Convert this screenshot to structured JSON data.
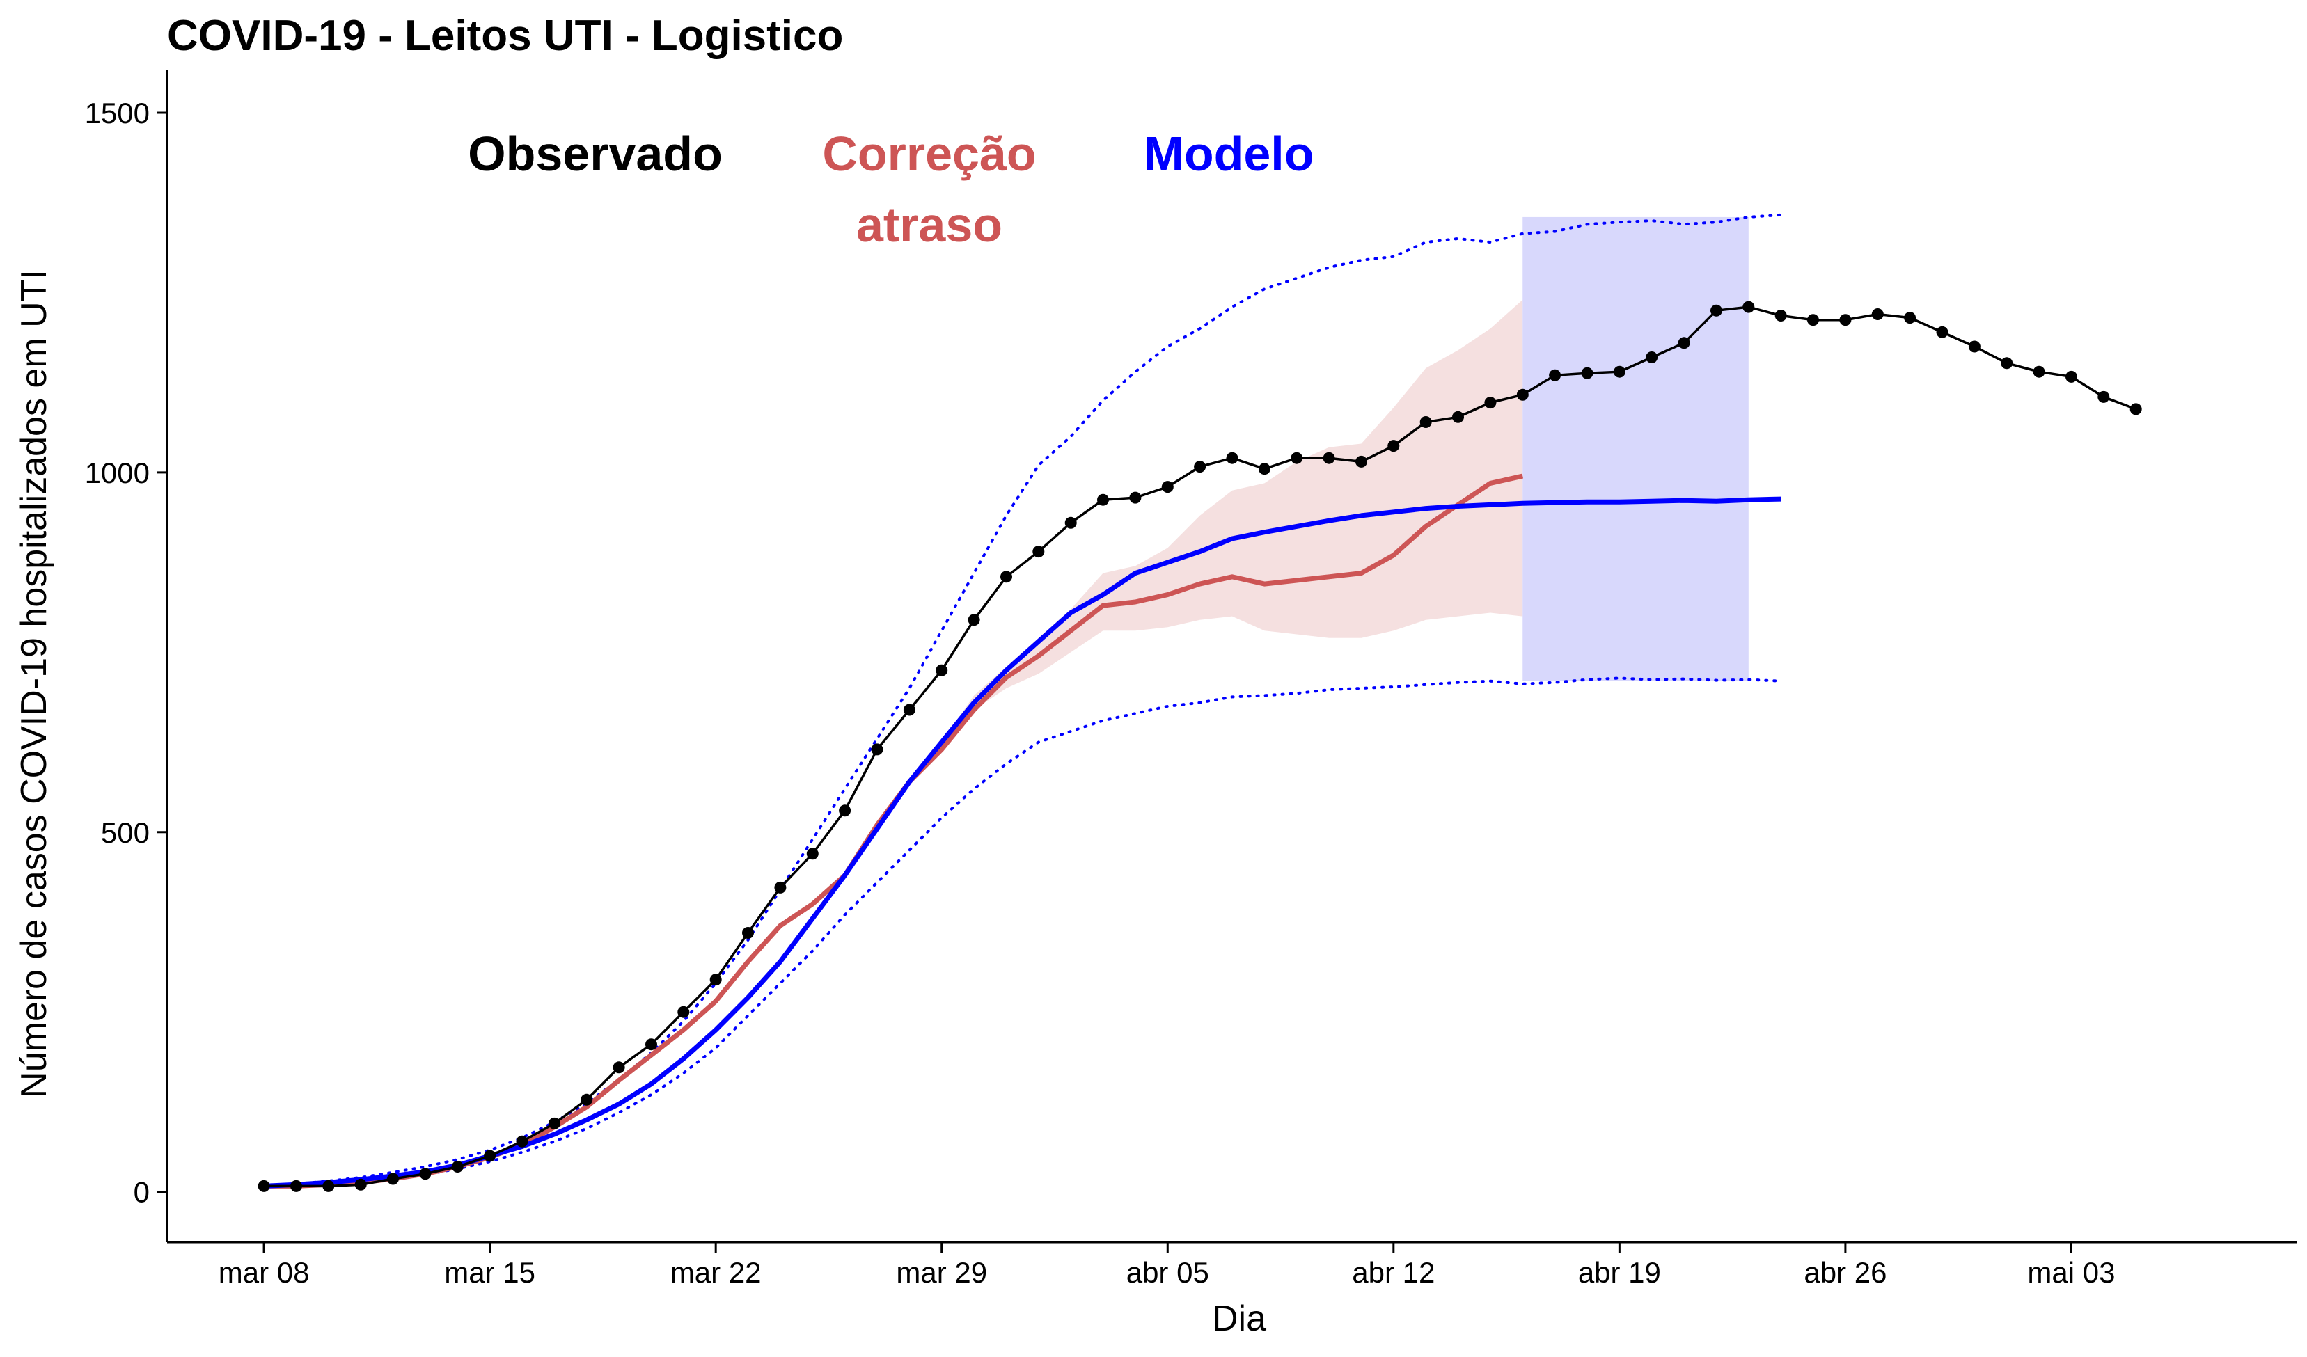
{
  "chart_data": {
    "type": "line",
    "title": "COVID-19 - Leitos UTI - Logistico",
    "xlabel": "Dia",
    "ylabel": "Número de casos COVID-19 hospitalizados em UTI",
    "x_axis_kind": "date",
    "x_start": "2020-03-08",
    "x_end": "2020-05-05",
    "xlim": [
      "2020-03-05",
      "2020-05-10"
    ],
    "ylim": [
      -70,
      1560
    ],
    "x_ticks": [
      {
        "date": "2020-03-08",
        "label": "mar 08"
      },
      {
        "date": "2020-03-15",
        "label": "mar 15"
      },
      {
        "date": "2020-03-22",
        "label": "mar 22"
      },
      {
        "date": "2020-03-29",
        "label": "mar 29"
      },
      {
        "date": "2020-04-05",
        "label": "abr 05"
      },
      {
        "date": "2020-04-12",
        "label": "abr 12"
      },
      {
        "date": "2020-04-19",
        "label": "abr 19"
      },
      {
        "date": "2020-04-26",
        "label": "abr 26"
      },
      {
        "date": "2020-05-03",
        "label": "mai 03"
      }
    ],
    "y_ticks": [
      0,
      500,
      1000,
      1500
    ],
    "y_tick_labels": [
      "0",
      "500",
      "1000",
      "1500"
    ],
    "grid": false,
    "legend_position": "top-left, inside plot",
    "legend_labels": [
      {
        "series": "observado",
        "lines": [
          "Observado"
        ],
        "color": "#000000"
      },
      {
        "series": "correcao",
        "lines": [
          "Correção",
          "atraso"
        ],
        "color": "#cd5555"
      },
      {
        "series": "modelo",
        "lines": [
          "Modelo"
        ],
        "color": "#0000ff"
      }
    ],
    "series": {
      "observado": {
        "color": "#000000",
        "style": "line with points",
        "values": [
          8,
          8,
          8,
          10,
          18,
          25,
          35,
          50,
          70,
          95,
          128,
          173,
          205,
          250,
          295,
          360,
          423,
          470,
          530,
          615,
          670,
          725,
          795,
          855,
          890,
          930,
          962,
          965,
          980,
          1008,
          1020,
          1005,
          1020,
          1020,
          1015,
          1037,
          1070,
          1077,
          1097,
          1108,
          1135,
          1138,
          1140,
          1160,
          1180,
          1225,
          1230,
          1218,
          1212,
          1212,
          1220,
          1215,
          1195,
          1175,
          1152,
          1140,
          1133,
          1105,
          1088
        ]
      },
      "correcao": {
        "color": "#cd5555",
        "style": "thick line with shaded band",
        "band_color": "#f5e0e0",
        "values": [
          8,
          8,
          10,
          13,
          18,
          25,
          35,
          48,
          65,
          90,
          118,
          155,
          190,
          225,
          265,
          320,
          370,
          400,
          440,
          510,
          570,
          615,
          670,
          715,
          745,
          780,
          815,
          820,
          830,
          845,
          855,
          845,
          850,
          855,
          860,
          885,
          925,
          955,
          985,
          995
        ],
        "lower": [
          8,
          8,
          10,
          13,
          18,
          25,
          35,
          48,
          65,
          90,
          118,
          155,
          190,
          225,
          265,
          320,
          370,
          400,
          440,
          510,
          570,
          615,
          670,
          700,
          720,
          750,
          780,
          780,
          785,
          795,
          800,
          780,
          775,
          770,
          770,
          780,
          795,
          800,
          805,
          800
        ],
        "upper": [
          8,
          8,
          10,
          13,
          18,
          25,
          35,
          48,
          65,
          90,
          118,
          155,
          190,
          225,
          265,
          320,
          370,
          400,
          440,
          510,
          570,
          625,
          690,
          730,
          770,
          810,
          860,
          870,
          895,
          940,
          975,
          985,
          1015,
          1035,
          1040,
          1090,
          1145,
          1170,
          1200,
          1240
        ]
      },
      "modelo": {
        "color": "#0000ff",
        "style": "thick line",
        "values": [
          8,
          10,
          13,
          17,
          22,
          28,
          37,
          50,
          63,
          80,
          100,
          122,
          150,
          185,
          225,
          270,
          320,
          380,
          440,
          505,
          570,
          625,
          680,
          725,
          765,
          805,
          830,
          860,
          875,
          890,
          908,
          917,
          925,
          933,
          940,
          945,
          950,
          953,
          955,
          957,
          958,
          959,
          959,
          960,
          961,
          960,
          962,
          963
        ],
        "lower_dotted": [
          8,
          9,
          11,
          14,
          18,
          24,
          32,
          42,
          55,
          70,
          88,
          110,
          135,
          165,
          200,
          245,
          290,
          335,
          385,
          430,
          475,
          520,
          560,
          595,
          625,
          640,
          655,
          665,
          675,
          680,
          688,
          690,
          693,
          698,
          700,
          702,
          705,
          708,
          710,
          706,
          708,
          712,
          714,
          712,
          713,
          711,
          712,
          710
        ],
        "upper_dotted": [
          8,
          11,
          15,
          20,
          27,
          35,
          45,
          58,
          75,
          97,
          123,
          156,
          193,
          237,
          290,
          350,
          420,
          490,
          560,
          630,
          700,
          780,
          860,
          940,
          1010,
          1050,
          1100,
          1140,
          1175,
          1200,
          1230,
          1255,
          1270,
          1285,
          1295,
          1300,
          1320,
          1325,
          1320,
          1332,
          1335,
          1345,
          1348,
          1350,
          1345,
          1348,
          1355,
          1358
        ],
        "forecast_band": {
          "start": "2020-04-16",
          "end": "2020-04-23",
          "lower": 710,
          "upper": 1355,
          "color": "#d8d8fc"
        }
      }
    }
  }
}
